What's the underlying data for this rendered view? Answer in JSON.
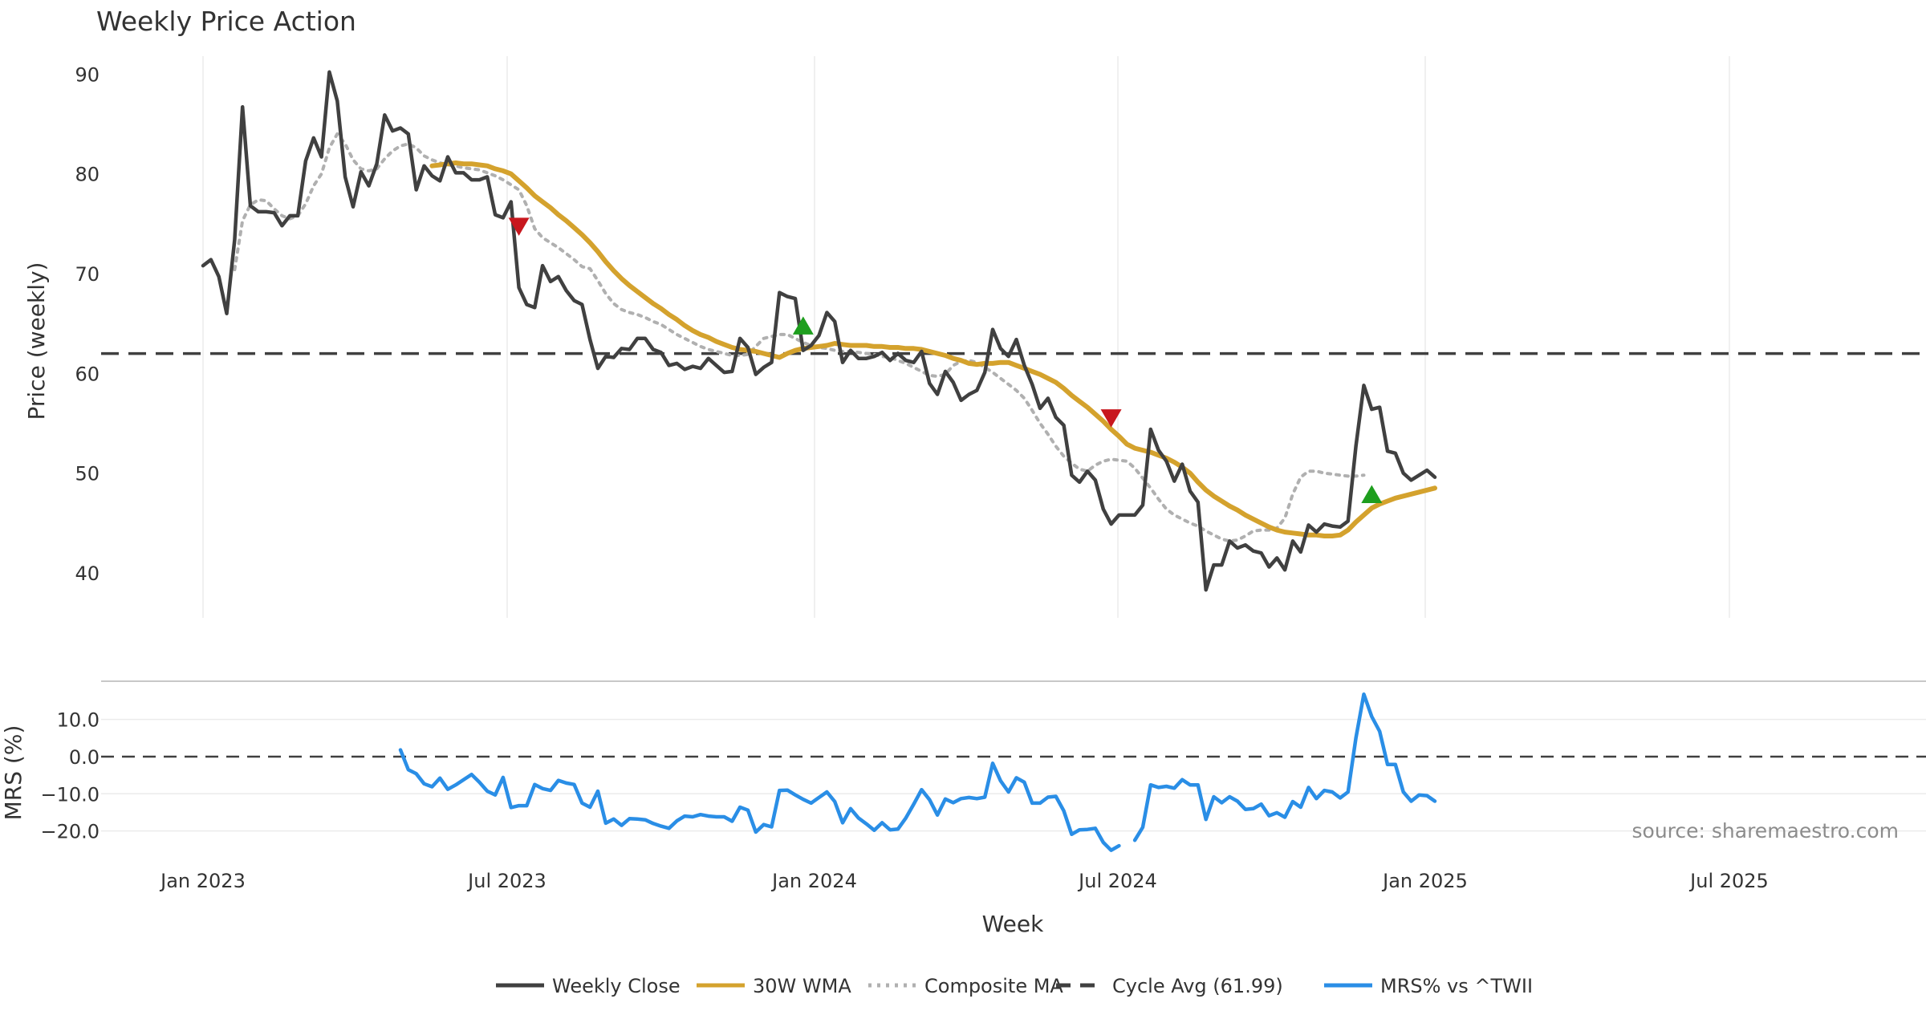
{
  "chart_data": {
    "type": "line",
    "title": "Weekly Price Action",
    "xlabel": "Week",
    "x_ticks": [
      "Jan 2023",
      "Jul 2023",
      "Jan 2024",
      "Jul 2024",
      "Jan 2025",
      "Jul 2025"
    ],
    "price_panel": {
      "ylabel": "Price (weekly)",
      "ylim": [
        35.5,
        93
      ],
      "y_ticks": [
        "40",
        "50",
        "60",
        "70",
        "80",
        "90"
      ],
      "cycle_avg": 61.99,
      "series": [
        {
          "name": "Weekly Close",
          "color": "#404040",
          "style": "solid",
          "start_week": 0,
          "values": [
            70.8,
            71.4,
            69.7,
            66.0,
            73.4,
            86.7,
            76.8,
            76.2,
            76.2,
            76.1,
            74.8,
            75.8,
            75.8,
            81.3,
            83.6,
            81.7,
            90.2,
            87.3,
            79.7,
            76.7,
            80.2,
            78.8,
            81.0,
            85.9,
            84.3,
            84.6,
            84.0,
            78.4,
            80.8,
            79.8,
            79.3,
            81.7,
            80.1,
            80.1,
            79.4,
            79.4,
            79.7,
            75.9,
            75.6,
            77.2,
            68.6,
            66.9,
            66.6,
            70.8,
            69.2,
            69.7,
            68.3,
            67.3,
            66.9,
            63.4,
            60.5,
            61.7,
            61.6,
            62.5,
            62.4,
            63.5,
            63.5,
            62.4,
            62.1,
            60.8,
            61.0,
            60.4,
            60.7,
            60.5,
            61.5,
            60.8,
            60.1,
            60.2,
            63.5,
            62.6,
            59.9,
            60.6,
            61.1,
            68.1,
            67.7,
            67.5,
            62.3,
            62.8,
            63.8,
            66.1,
            65.2,
            61.1,
            62.3,
            61.5,
            61.5,
            61.7,
            62.1,
            61.3,
            62.0,
            61.3,
            61.1,
            62.2,
            59.0,
            57.9,
            60.2,
            59.1,
            57.3,
            57.9,
            58.3,
            60.1,
            64.4,
            62.5,
            61.7,
            63.4,
            60.8,
            58.9,
            56.5,
            57.5,
            55.6,
            54.8,
            49.8,
            49.1,
            50.2,
            49.3,
            46.4,
            44.9,
            45.8,
            45.8,
            45.8,
            46.8,
            54.4,
            52.3,
            51.2,
            49.2,
            50.9,
            48.2,
            47.1,
            38.3,
            40.8,
            40.8,
            43.2,
            42.5,
            42.8,
            42.2,
            42.0,
            40.6,
            41.5,
            40.3,
            43.2,
            42.1,
            44.8,
            44.1,
            44.9,
            44.7,
            44.6,
            45.2,
            52.7,
            58.8,
            56.4,
            56.6,
            52.2,
            52.0,
            50.0,
            49.3,
            49.8,
            50.3,
            49.6
          ]
        },
        {
          "name": "30W WMA",
          "color": "#D4A22D",
          "style": "solid",
          "start_week": 29,
          "values": [
            80.8,
            80.9,
            81.0,
            81.1,
            81.0,
            81.0,
            80.9,
            80.8,
            80.5,
            80.3,
            80.0,
            79.3,
            78.6,
            77.8,
            77.2,
            76.6,
            75.9,
            75.3,
            74.6,
            73.9,
            73.1,
            72.2,
            71.2,
            70.3,
            69.5,
            68.8,
            68.2,
            67.6,
            67.0,
            66.5,
            65.9,
            65.4,
            64.8,
            64.3,
            63.9,
            63.6,
            63.2,
            62.9,
            62.6,
            62.4,
            62.3,
            62.2,
            62.0,
            61.8,
            61.6,
            62.0,
            62.3,
            62.5,
            62.6,
            62.7,
            62.8,
            63.0,
            62.9,
            62.8,
            62.8,
            62.8,
            62.7,
            62.7,
            62.6,
            62.6,
            62.5,
            62.5,
            62.4,
            62.2,
            62.0,
            61.8,
            61.5,
            61.3,
            61.0,
            60.9,
            61.0,
            61.0,
            61.1,
            61.1,
            60.8,
            60.5,
            60.2,
            59.9,
            59.5,
            59.1,
            58.5,
            57.8,
            57.2,
            56.6,
            55.9,
            55.2,
            54.4,
            53.7,
            52.9,
            52.5,
            52.3,
            52.1,
            51.8,
            51.5,
            51.1,
            50.6,
            50.0,
            49.1,
            48.3,
            47.7,
            47.2,
            46.7,
            46.3,
            45.8,
            45.4,
            45.0,
            44.6,
            44.3,
            44.1,
            44.0,
            43.9,
            43.8,
            43.8,
            43.7,
            43.7,
            43.8,
            44.3,
            45.1,
            45.8,
            46.5,
            46.9,
            47.2,
            47.5,
            47.7,
            47.9,
            48.1,
            48.3,
            48.5
          ]
        },
        {
          "name": "Composite MA",
          "color": "#B0B0B0",
          "style": "dotted",
          "start_week": 4,
          "values": [
            70.4,
            75.3,
            76.9,
            77.4,
            77.3,
            76.5,
            75.8,
            75.5,
            75.8,
            77.0,
            78.8,
            80.0,
            82.6,
            84.0,
            83.0,
            81.4,
            80.5,
            80.3,
            80.5,
            81.5,
            82.3,
            82.8,
            83.0,
            82.6,
            81.8,
            81.4,
            81.1,
            80.9,
            80.8,
            80.6,
            80.5,
            80.4,
            80.1,
            79.8,
            79.4,
            78.9,
            78.4,
            76.8,
            74.5,
            73.6,
            73.1,
            72.6,
            72.0,
            71.4,
            70.7,
            70.5,
            69.3,
            68.0,
            67.0,
            66.4,
            66.1,
            65.9,
            65.6,
            65.2,
            64.9,
            64.4,
            63.9,
            63.5,
            63.1,
            62.7,
            62.4,
            62.2,
            62.0,
            61.8,
            61.8,
            61.9,
            62.7,
            63.5,
            63.7,
            63.9,
            63.9,
            63.5,
            63.1,
            62.8,
            62.6,
            62.5,
            62.3,
            62.2,
            62.2,
            62.1,
            62.0,
            61.9,
            61.7,
            61.6,
            61.3,
            61.0,
            60.6,
            60.2,
            59.8,
            59.7,
            59.9,
            60.8,
            61.2,
            61.3,
            61.1,
            60.6,
            60.1,
            59.5,
            58.9,
            58.3,
            57.5,
            56.3,
            55.0,
            53.9,
            52.7,
            51.7,
            51.0,
            50.4,
            50.2,
            50.8,
            51.2,
            51.4,
            51.3,
            51.2,
            50.5,
            49.5,
            48.5,
            47.4,
            46.4,
            45.8,
            45.4,
            45.0,
            44.7,
            44.2,
            43.8,
            43.4,
            43.2,
            43.3,
            43.7,
            44.2,
            44.3,
            44.3,
            44.5,
            45.5,
            47.9,
            49.6,
            50.2,
            50.2,
            50.0,
            49.9,
            49.8,
            49.7,
            49.7,
            49.8
          ]
        }
      ],
      "markers": [
        {
          "type": "sell",
          "color": "#C8171E",
          "week": 40,
          "value": 75.0
        },
        {
          "type": "buy",
          "color": "#1E9E1E",
          "week": 76,
          "value": 64.5
        },
        {
          "type": "sell",
          "color": "#C8171E",
          "week": 115,
          "value": 55.8
        },
        {
          "type": "buy",
          "color": "#1E9E1E",
          "week": 148,
          "value": 47.6
        }
      ]
    },
    "mrs_panel": {
      "ylabel": "MRS (%)",
      "ylim": [
        -27,
        19
      ],
      "y_ticks": [
        "10.0",
        "0.0",
        "−10.0",
        "−20.0"
      ],
      "series": [
        {
          "name": "MRS% vs ^TWII",
          "color": "#2A8EE6",
          "style": "solid",
          "start_week": 25,
          "values": [
            1.8,
            -3.5,
            -4.6,
            -7.3,
            -8.1,
            -5.8,
            -8.8,
            -7.6,
            -6.2,
            -4.8,
            -6.9,
            -9.3,
            -10.3,
            -5.6,
            -13.7,
            -13.2,
            -13.2,
            -7.5,
            -8.6,
            -9.1,
            -6.4,
            -7.1,
            -7.5,
            -12.5,
            -13.6,
            -9.3,
            -17.9,
            -16.8,
            -18.5,
            -16.7,
            -16.8,
            -17.0,
            -18.0,
            -18.7,
            -19.3,
            -17.3,
            -16.0,
            -16.2,
            -15.6,
            -16.0,
            -16.2,
            -16.2,
            -17.4,
            -13.6,
            -14.4,
            -20.3,
            -18.3,
            -18.9,
            -9.1,
            -9.0,
            -10.3,
            -11.5,
            -12.5,
            -11.0,
            -9.5,
            -12.1,
            -17.8,
            -14.0,
            -16.5,
            -18.1,
            -19.8,
            -17.8,
            -19.7,
            -19.5,
            -16.5,
            -12.8,
            -8.9,
            -11.6,
            -15.7,
            -11.4,
            -12.4,
            -11.3,
            -11.0,
            -11.3,
            -10.9,
            -1.8,
            -6.5,
            -9.5,
            -5.7,
            -6.9,
            -12.5,
            -12.5,
            -10.9,
            -10.7,
            -14.6,
            -20.9,
            -19.7,
            -19.6,
            -19.3,
            -23.1,
            -25.2,
            -24.0,
            null,
            -22.5,
            -19.0,
            -7.6,
            -8.3,
            -8.0,
            -8.5,
            -6.2,
            -7.6,
            -7.6,
            -16.9,
            -10.8,
            -12.4,
            -10.8,
            -12.0,
            -14.2,
            -14.0,
            -12.8,
            -15.9,
            -15.1,
            -16.3,
            -12.1,
            -13.6,
            -8.3,
            -11.3,
            -9.1,
            -9.5,
            -11.1,
            -9.5,
            5.0,
            16.8,
            10.8,
            6.8,
            -2.1,
            -2.1,
            -9.5,
            -12.0,
            -10.3,
            -10.5,
            -12.0
          ]
        }
      ],
      "zero_line": 0
    },
    "legend": {
      "placement": "bottom",
      "entries": [
        {
          "label": "Weekly Close",
          "color": "#404040",
          "style": "solid"
        },
        {
          "label": "30W WMA",
          "color": "#D4A22D",
          "style": "solid"
        },
        {
          "label": "Composite MA",
          "color": "#B0B0B0",
          "style": "dotted"
        },
        {
          "label": "Cycle Avg (61.99)",
          "color": "#404040",
          "style": "dashed"
        },
        {
          "label": "MRS% vs ^TWII",
          "color": "#2A8EE6",
          "style": "solid"
        }
      ]
    },
    "source_note": "source: sharemaestro.com",
    "grid": true
  }
}
